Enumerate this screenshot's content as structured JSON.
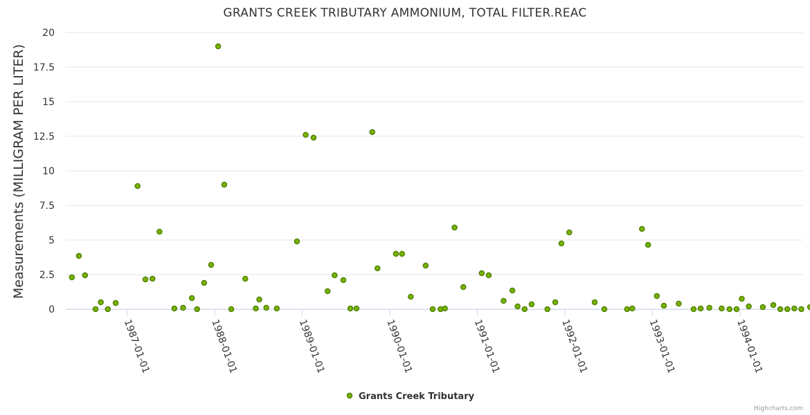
{
  "chart_data": {
    "type": "scatter",
    "title": "GRANTS CREEK TRIBUTARY AMMONIUM, TOTAL FILTER.REAC",
    "xlabel": "",
    "ylabel": "Measurements (MILLIGRAM PER LITER)",
    "ylim": [
      0,
      20
    ],
    "yticks": [
      0,
      2.5,
      5,
      7.5,
      10,
      12.5,
      15,
      17.5,
      20
    ],
    "ytick_labels": [
      "0",
      "2.5",
      "5",
      "7.5",
      "10",
      "12.5",
      "15",
      "17.5",
      "20"
    ],
    "xlim": [
      1986.3,
      1994.72
    ],
    "xticks": [
      1987.0,
      1988.0,
      1989.0,
      1990.0,
      1991.0,
      1992.0,
      1993.0,
      1994.0
    ],
    "xtick_labels": [
      "1987-01-01",
      "1988-01-01",
      "1989-01-01",
      "1990-01-01",
      "1991-01-01",
      "1992-01-01",
      "1993-01-01",
      "1994-01-01"
    ],
    "grid": true,
    "legend": "bottom-center",
    "series": [
      {
        "name": "Grants Creek Tributary",
        "color": "#77b300",
        "points": [
          [
            1986.37,
            2.3
          ],
          [
            1986.45,
            3.85
          ],
          [
            1986.52,
            2.45
          ],
          [
            1986.64,
            0.0
          ],
          [
            1986.7,
            0.5
          ],
          [
            1986.78,
            0.0
          ],
          [
            1986.87,
            0.45
          ],
          [
            1987.12,
            8.9
          ],
          [
            1987.21,
            2.15
          ],
          [
            1987.29,
            2.2
          ],
          [
            1987.37,
            5.6
          ],
          [
            1987.54,
            0.05
          ],
          [
            1987.64,
            0.1
          ],
          [
            1987.74,
            0.8
          ],
          [
            1987.8,
            0.0
          ],
          [
            1987.88,
            1.9
          ],
          [
            1987.96,
            3.2
          ],
          [
            1988.04,
            19.0
          ],
          [
            1988.11,
            9.0
          ],
          [
            1988.19,
            0.0
          ],
          [
            1988.35,
            2.2
          ],
          [
            1988.47,
            0.05
          ],
          [
            1988.51,
            0.7
          ],
          [
            1988.59,
            0.1
          ],
          [
            1988.71,
            0.05
          ],
          [
            1988.94,
            4.9
          ],
          [
            1989.04,
            12.6
          ],
          [
            1989.13,
            12.4
          ],
          [
            1989.29,
            1.3
          ],
          [
            1989.37,
            2.45
          ],
          [
            1989.47,
            2.1
          ],
          [
            1989.55,
            0.05
          ],
          [
            1989.62,
            0.05
          ],
          [
            1989.8,
            12.8
          ],
          [
            1989.86,
            2.95
          ],
          [
            1990.07,
            4.0
          ],
          [
            1990.14,
            4.0
          ],
          [
            1990.24,
            0.9
          ],
          [
            1990.41,
            3.15
          ],
          [
            1990.49,
            0.0
          ],
          [
            1990.58,
            0.0
          ],
          [
            1990.63,
            0.05
          ],
          [
            1990.74,
            5.9
          ],
          [
            1990.84,
            1.6
          ],
          [
            1991.05,
            2.6
          ],
          [
            1991.13,
            2.45
          ],
          [
            1991.3,
            0.6
          ],
          [
            1991.4,
            1.35
          ],
          [
            1991.46,
            0.2
          ],
          [
            1991.54,
            0.0
          ],
          [
            1991.62,
            0.35
          ],
          [
            1991.8,
            0.0
          ],
          [
            1991.89,
            0.5
          ],
          [
            1991.96,
            4.75
          ],
          [
            1992.05,
            5.55
          ],
          [
            1992.34,
            0.5
          ],
          [
            1992.45,
            0.0
          ],
          [
            1992.71,
            0.0
          ],
          [
            1992.77,
            0.05
          ],
          [
            1992.88,
            5.8
          ],
          [
            1992.95,
            4.65
          ],
          [
            1993.05,
            0.95
          ],
          [
            1993.13,
            0.25
          ],
          [
            1993.3,
            0.4
          ],
          [
            1993.47,
            0.0
          ],
          [
            1993.55,
            0.05
          ],
          [
            1993.65,
            0.1
          ],
          [
            1993.79,
            0.05
          ],
          [
            1993.88,
            0.0
          ],
          [
            1993.96,
            0.0
          ],
          [
            1994.02,
            0.75
          ],
          [
            1994.1,
            0.2
          ],
          [
            1994.26,
            0.15
          ],
          [
            1994.38,
            0.3
          ],
          [
            1994.46,
            0.0
          ],
          [
            1994.54,
            0.0
          ],
          [
            1994.62,
            0.05
          ],
          [
            1994.7,
            0.0
          ],
          [
            1994.8,
            0.15
          ]
        ]
      }
    ],
    "credit": "Highcharts.com"
  }
}
